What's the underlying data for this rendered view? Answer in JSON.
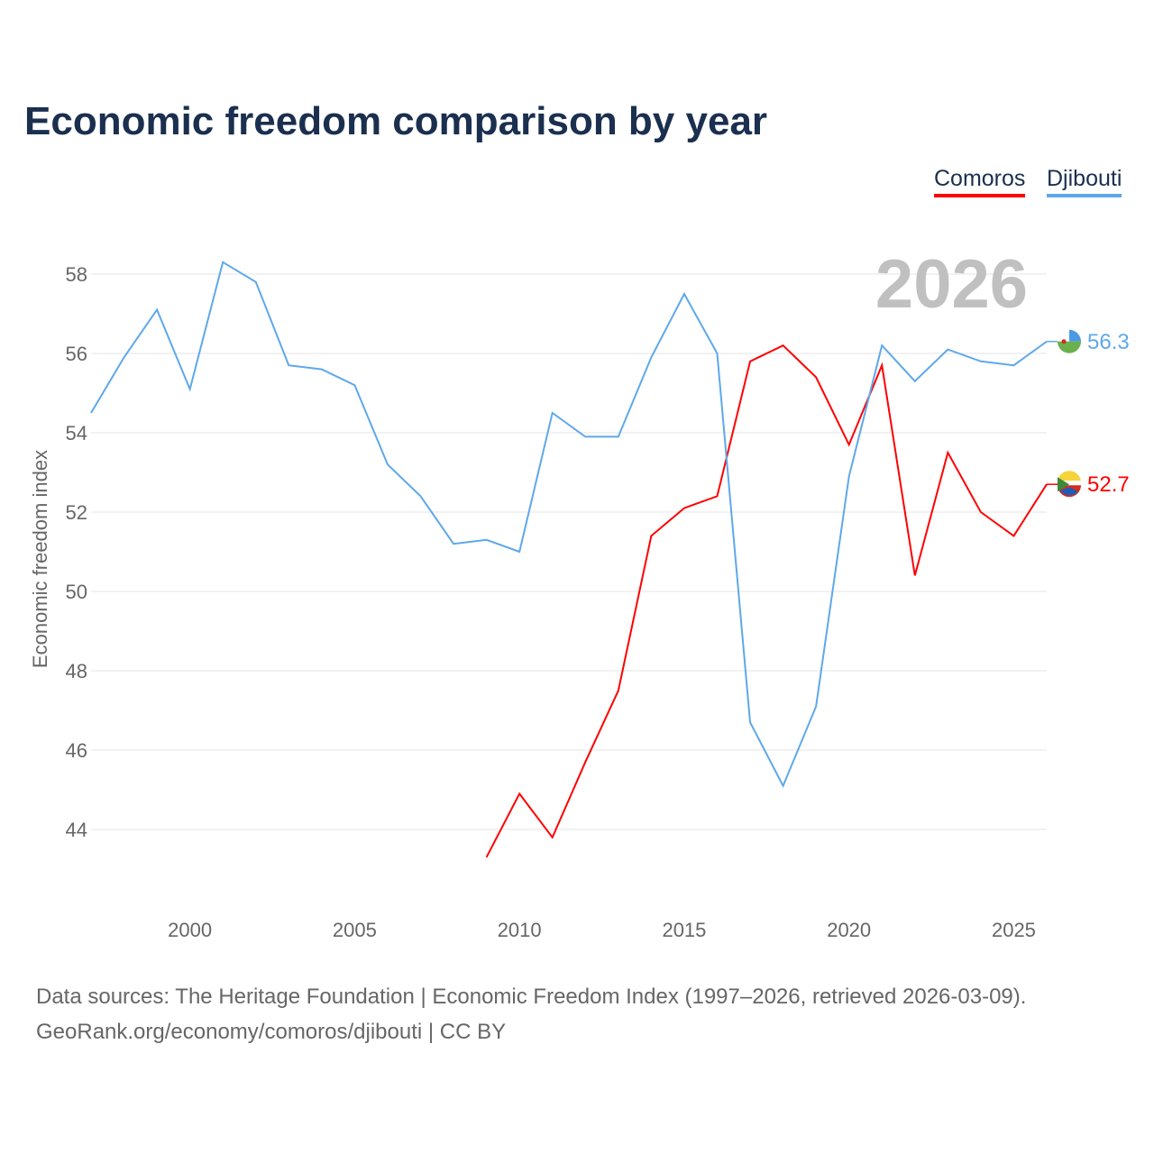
{
  "chart_data": {
    "type": "line",
    "title": "Economic freedom comparison by year",
    "xlabel": "",
    "ylabel": "Economic freedom index",
    "xlim": [
      1997,
      2026
    ],
    "ylim": [
      42,
      59.5
    ],
    "xticks": [
      2000,
      2005,
      2010,
      2015,
      2020,
      2025
    ],
    "yticks": [
      44,
      46,
      48,
      50,
      52,
      54,
      56,
      58
    ],
    "grid": true,
    "legend_position": "top-right",
    "year_label": "2026",
    "series": [
      {
        "name": "Comoros",
        "color": "#ff0000",
        "end_label": "52.7",
        "x": [
          2009,
          2010,
          2011,
          2012,
          2013,
          2014,
          2015,
          2016,
          2017,
          2018,
          2019,
          2020,
          2021,
          2022,
          2023,
          2024,
          2025,
          2026
        ],
        "values": [
          43.3,
          44.9,
          43.8,
          45.7,
          47.5,
          51.4,
          52.1,
          52.4,
          55.8,
          56.2,
          55.4,
          53.7,
          55.7,
          50.4,
          53.5,
          52.0,
          51.4,
          52.7
        ]
      },
      {
        "name": "Djibouti",
        "color": "#5ea8ea",
        "end_label": "56.3",
        "x": [
          1997,
          1998,
          1999,
          2000,
          2001,
          2002,
          2003,
          2004,
          2005,
          2006,
          2007,
          2008,
          2009,
          2010,
          2011,
          2012,
          2013,
          2014,
          2015,
          2016,
          2017,
          2018,
          2019,
          2020,
          2021,
          2022,
          2023,
          2024,
          2025,
          2026
        ],
        "values": [
          54.5,
          55.9,
          57.1,
          55.1,
          58.3,
          57.8,
          55.7,
          55.6,
          55.2,
          53.2,
          52.4,
          51.2,
          51.3,
          51.0,
          54.5,
          53.9,
          53.9,
          55.9,
          57.5,
          56.0,
          46.7,
          45.1,
          47.1,
          52.9,
          56.2,
          55.3,
          56.1,
          55.8,
          55.7,
          56.3
        ]
      }
    ]
  },
  "footer": {
    "line1": "Data sources: The Heritage Foundation | Economic Freedom Index (1997–2026, retrieved 2026-03-09).",
    "line2": "GeoRank.org/economy/comoros/djibouti | CC BY"
  }
}
